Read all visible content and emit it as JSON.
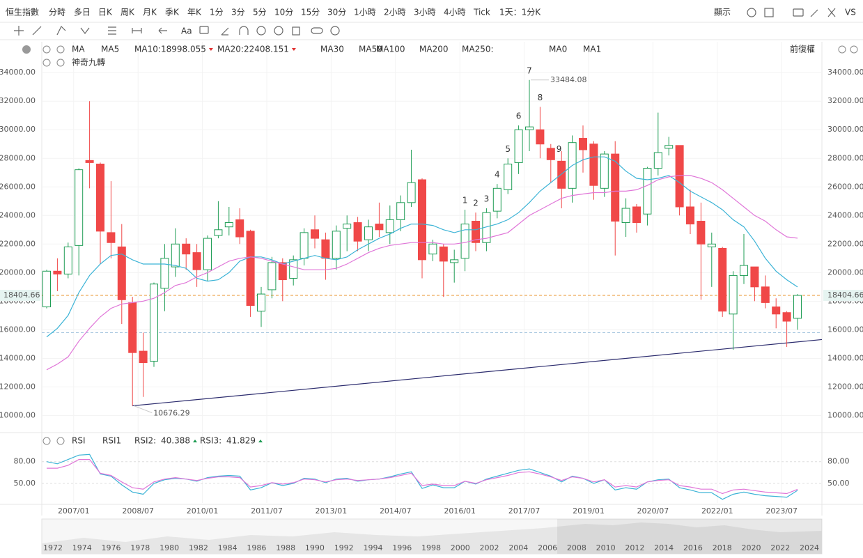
{
  "toolbar": {
    "symbol": "恒生指數",
    "periods": [
      "分時",
      "多日",
      "日K",
      "周K",
      "月K",
      "季K",
      "年K",
      "1分",
      "3分",
      "5分",
      "10分",
      "15分",
      "30分",
      "1小時",
      "2小時",
      "3小時",
      "4小時",
      "Tick",
      "1天：1分K"
    ],
    "selected": "季K",
    "display": "顯示",
    "compare": "VS",
    "font_tool": "Aa",
    "adjust": "前復權"
  },
  "navigator": {
    "years": [
      "1972",
      "1974",
      "1976",
      "1978",
      "1980",
      "1982",
      "1984",
      "1986",
      "1988",
      "1990",
      "1992",
      "1994",
      "1996",
      "1998",
      "2000",
      "2002",
      "2004",
      "2006",
      "2008",
      "2010",
      "2012",
      "2014",
      "2016",
      "2018",
      "2020",
      "2022",
      "2024"
    ]
  },
  "chart_data": [
    {
      "type": "candlestick",
      "indicator": "MA",
      "nine_turn_title": "神奇九轉",
      "categories": [
        null,
        null,
        "2007/01",
        null,
        null,
        null,
        null,
        null,
        "2008/07",
        null,
        null,
        null,
        null,
        null,
        "2010/01",
        null,
        null,
        null,
        null,
        null,
        "2011/07",
        null,
        null,
        null,
        null,
        null,
        "2013/01",
        null,
        null,
        null,
        null,
        null,
        "2014/07",
        null,
        null,
        null,
        null,
        null,
        "2016/01",
        null,
        null,
        null,
        null,
        null,
        "2017/07",
        null,
        null,
        null,
        null,
        null,
        "2019/01",
        null,
        null,
        null,
        null,
        null,
        "2020/07",
        null,
        null,
        null,
        null,
        null,
        "2022/01",
        null,
        null,
        null,
        null,
        null,
        "2023/07",
        null,
        null
      ],
      "open": [
        17600,
        20100,
        19900,
        21900,
        27850,
        27600,
        22800,
        21800,
        17900,
        14500,
        13800,
        18900,
        20400,
        22000,
        21400,
        20200,
        22600,
        23200,
        23700,
        22900,
        17300,
        18800,
        20700,
        19600,
        21000,
        23000,
        22300,
        21000,
        23100,
        23500,
        22300,
        23400,
        22800,
        23700,
        24900,
        26500,
        21300,
        21800,
        20700,
        21000,
        23600,
        22100,
        24300,
        25800,
        27700,
        30000,
        30000,
        28700,
        27800,
        25900,
        29400,
        29000,
        25900,
        28300,
        23500,
        24600,
        24100,
        27300,
        28700,
        28900,
        24600,
        23600,
        21800,
        21700,
        17100,
        19800,
        20400,
        19000,
        17600,
        17200,
        16800
      ],
      "high": [
        20200,
        21000,
        22100,
        27300,
        32000,
        27700,
        26400,
        23400,
        18300,
        15800,
        19300,
        22000,
        23100,
        22400,
        22000,
        22600,
        25000,
        24600,
        24500,
        23000,
        19000,
        21100,
        21000,
        21200,
        23100,
        24000,
        22800,
        23300,
        24000,
        23900,
        23700,
        24900,
        24700,
        25400,
        28600,
        26600,
        22300,
        22000,
        21600,
        24400,
        24200,
        24500,
        26200,
        28000,
        30300,
        33484.08,
        31600,
        29000,
        28500,
        29600,
        30300,
        29200,
        28500,
        29200,
        25200,
        24800,
        27400,
        31200,
        29500,
        28900,
        25800,
        24900,
        22800,
        21800,
        20100,
        22700,
        20400,
        19800,
        18200,
        17300,
        18500
      ],
      "low": [
        17500,
        18700,
        19600,
        19800,
        25900,
        20600,
        21000,
        16400,
        10676.29,
        11300,
        13400,
        17300,
        19700,
        20200,
        19000,
        19400,
        22400,
        22600,
        22000,
        16900,
        16200,
        18200,
        18000,
        19100,
        20500,
        21700,
        19500,
        20200,
        21500,
        21500,
        21500,
        22500,
        22000,
        22900,
        24600,
        19600,
        20800,
        18300,
        19300,
        20100,
        21500,
        21500,
        23800,
        25500,
        26900,
        28500,
        28000,
        26300,
        24500,
        24900,
        27000,
        25100,
        25300,
        21200,
        22500,
        22800,
        23300,
        26800,
        28200,
        24000,
        22700,
        18100,
        19000,
        16900,
        14600,
        19200,
        18000,
        17500,
        16100,
        14800,
        16000
      ],
      "close": [
        20100,
        19900,
        21800,
        27200,
        27700,
        22900,
        22100,
        18100,
        14400,
        13700,
        19200,
        21000,
        22000,
        21300,
        20200,
        22400,
        23000,
        23500,
        22500,
        17700,
        18500,
        20700,
        19500,
        20900,
        22800,
        22400,
        21000,
        22900,
        23400,
        22200,
        23200,
        23000,
        23700,
        24900,
        26300,
        20900,
        22000,
        20800,
        20900,
        23400,
        22100,
        24200,
        25900,
        27600,
        30000,
        30200,
        29000,
        27900,
        25900,
        29100,
        28600,
        26100,
        28300,
        23600,
        24500,
        23500,
        27300,
        28400,
        28900,
        24600,
        23400,
        22000,
        22000,
        17300,
        19800,
        20500,
        19000,
        17900,
        17100,
        16600,
        18404.66
      ],
      "up_color": "#1f9d55",
      "down_color": "#f04848",
      "overlays": [
        {
          "name": "MA5",
          "color": "#f5c59a"
        },
        {
          "name": "MA10:",
          "color": "#3bb3d6",
          "arrow": "down",
          "values": [
            15500,
            16100,
            17000,
            18600,
            19800,
            20600,
            21200,
            21300,
            20900,
            20600,
            20600,
            20600,
            20500,
            20300,
            19600,
            19400,
            19500,
            20000,
            20800,
            21100,
            21100,
            20900,
            20600,
            20800,
            21000,
            21200,
            21000,
            20900,
            21100,
            21600,
            22000,
            22400,
            22700,
            23100,
            23400,
            23400,
            23300,
            23000,
            22800,
            23000,
            23000,
            23200,
            23400,
            23700,
            24200,
            24900,
            25700,
            26300,
            26900,
            27500,
            27900,
            28100,
            28100,
            27800,
            27100,
            26600,
            26500,
            26600,
            26800,
            26300,
            25700,
            25300,
            24900,
            24400,
            23700,
            23200,
            22200,
            21000,
            20100,
            19500,
            18998.055
          ]
        },
        {
          "name": "MA20:",
          "color": "#e076d8",
          "arrow": "down",
          "values": [
            13200,
            13600,
            14100,
            15200,
            16100,
            16900,
            17500,
            17800,
            17900,
            18000,
            18200,
            18600,
            19100,
            19300,
            19700,
            20000,
            20400,
            20800,
            21000,
            21100,
            21000,
            20800,
            20600,
            20400,
            20200,
            20200,
            20200,
            20300,
            20600,
            21000,
            21400,
            21700,
            21900,
            22000,
            22100,
            22100,
            22100,
            22000,
            22000,
            22100,
            22300,
            22400,
            22600,
            22800,
            23400,
            24000,
            24400,
            24800,
            25200,
            25400,
            25500,
            25600,
            25600,
            25700,
            25700,
            25800,
            26100,
            26500,
            26700,
            26800,
            26800,
            26600,
            26300,
            25800,
            25200,
            24600,
            24000,
            23600,
            23000,
            22500,
            22408.151
          ]
        },
        {
          "name": "MA30",
          "color": "#a6d9e6"
        },
        {
          "name": "MA50",
          "color": "#9fd6c6"
        },
        {
          "name": "MA100",
          "color": "#f2aebe"
        },
        {
          "name": "MA200",
          "color": "#b2e6f0"
        },
        {
          "name": "MA250:",
          "color": "#222222"
        },
        {
          "name": "MA0",
          "color": "#e2b2ea"
        },
        {
          "name": "MA1",
          "color": "#d9c2c2"
        }
      ],
      "nine_turn": [
        null,
        null,
        null,
        null,
        null,
        null,
        null,
        null,
        null,
        null,
        null,
        null,
        null,
        null,
        null,
        null,
        null,
        null,
        null,
        null,
        null,
        null,
        null,
        null,
        null,
        null,
        null,
        null,
        null,
        null,
        null,
        null,
        null,
        null,
        null,
        null,
        null,
        null,
        null,
        "1",
        "2",
        "3",
        "4",
        "5",
        "6",
        "7",
        "8",
        "9",
        null,
        null,
        null,
        null,
        null,
        null,
        null,
        null,
        null,
        null,
        null,
        null,
        null,
        null,
        null,
        null,
        null,
        null,
        null,
        null,
        null,
        null,
        null
      ],
      "nine_turn_color": "#a020c0",
      "nine_turn_final_color": "#1a9a50",
      "trendline": [
        10676.29,
        15150
      ],
      "trendline_color": "#2c2c6e",
      "reference_line": 15800,
      "last_price_color": "#e8962e",
      "ylim": [
        8800,
        34400
      ],
      "yticks": [
        {
          "value": 10000,
          "label": "10000.00"
        },
        {
          "value": 12000,
          "label": "12000.00"
        },
        {
          "value": 14000,
          "label": "14000.00"
        },
        {
          "value": 16000,
          "label": "16000.00"
        },
        {
          "value": 18000,
          "label": "18000.00"
        },
        {
          "value": 20000,
          "label": "20000.00"
        },
        {
          "value": 22000,
          "label": "22000.00"
        },
        {
          "value": 24000,
          "label": "24000.00"
        },
        {
          "value": 26000,
          "label": "26000.00"
        },
        {
          "value": 28000,
          "label": "28000.00"
        },
        {
          "value": 30000,
          "label": "30000.00"
        },
        {
          "value": 32000,
          "label": "32000.00"
        },
        {
          "value": 34000,
          "label": "34000.00"
        }
      ],
      "grid": true
    },
    {
      "type": "line",
      "indicator": "RSI",
      "overlays": [
        {
          "name": "RSI1",
          "color": "#f5c59a"
        },
        {
          "name": "RSI2:",
          "color": "#3bb3d6",
          "arrow": "up",
          "values": [
            80,
            77,
            83,
            89,
            90,
            63,
            60,
            48,
            38,
            35,
            50,
            55,
            57,
            56,
            53,
            58,
            60,
            61,
            60,
            41,
            44,
            51,
            47,
            50,
            57,
            56,
            51,
            56,
            57,
            53,
            55,
            56,
            59,
            63,
            66,
            43,
            48,
            44,
            44,
            53,
            49,
            56,
            60,
            64,
            68,
            70,
            65,
            60,
            52,
            60,
            57,
            50,
            55,
            41,
            44,
            42,
            52,
            55,
            56,
            44,
            41,
            37,
            37,
            28,
            35,
            38,
            35,
            33,
            32,
            31,
            40.388
          ]
        },
        {
          "name": "RSI3:",
          "color": "#e076d8",
          "arrow": "up",
          "values": [
            71,
            71,
            75,
            83,
            83,
            64,
            61,
            52,
            44,
            42,
            52,
            56,
            58,
            56,
            54,
            57,
            59,
            59,
            58,
            45,
            47,
            51,
            49,
            51,
            56,
            55,
            52,
            55,
            56,
            54,
            55,
            56,
            58,
            61,
            64,
            47,
            49,
            47,
            47,
            53,
            50,
            55,
            58,
            61,
            65,
            66,
            63,
            59,
            54,
            59,
            57,
            52,
            55,
            45,
            47,
            45,
            52,
            54,
            55,
            47,
            45,
            42,
            42,
            36,
            41,
            42,
            40,
            38,
            37,
            36,
            41.829
          ]
        }
      ],
      "ylim": [
        23,
        97
      ],
      "yticks": [
        {
          "value": 50,
          "label": "50.00"
        },
        {
          "value": 80,
          "label": "80.00"
        }
      ],
      "grid": true
    }
  ]
}
